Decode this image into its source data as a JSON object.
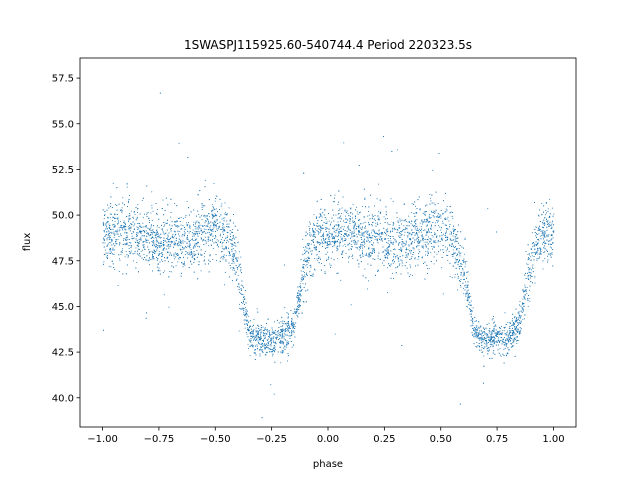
{
  "chart_data": {
    "type": "scatter",
    "title": "1SWASPJ115925.60-540744.4 Period 220323.5s",
    "xlabel": "phase",
    "ylabel": "flux",
    "xlim": [
      -1.1,
      1.1
    ],
    "ylim": [
      38.4,
      58.6
    ],
    "xticks": [
      -1.0,
      -0.75,
      -0.5,
      -0.25,
      0.0,
      0.25,
      0.5,
      0.75,
      1.0
    ],
    "xtick_labels": [
      "−1.00",
      "−0.75",
      "−0.50",
      "−0.25",
      "0.00",
      "0.25",
      "0.50",
      "0.75",
      "1.00"
    ],
    "yticks": [
      40.0,
      42.5,
      45.0,
      47.5,
      50.0,
      52.5,
      55.0,
      57.5
    ],
    "ytick_labels": [
      "40.0",
      "42.5",
      "45.0",
      "47.5",
      "50.0",
      "52.5",
      "55.0",
      "57.5"
    ],
    "grid": false,
    "marker_color": "#1f77b4",
    "series": [
      {
        "description_points": [
          [
            -1.0,
            49.0
          ],
          [
            -0.9,
            49.0
          ],
          [
            -0.8,
            48.8
          ],
          [
            -0.7,
            48.5
          ],
          [
            -0.6,
            48.8
          ],
          [
            -0.5,
            49.5
          ],
          [
            -0.45,
            48.8
          ],
          [
            -0.4,
            47.0
          ],
          [
            -0.35,
            43.5
          ],
          [
            -0.3,
            43.2
          ],
          [
            -0.25,
            43.2
          ],
          [
            -0.2,
            43.4
          ],
          [
            -0.15,
            44.0
          ],
          [
            -0.1,
            47.5
          ],
          [
            -0.05,
            49.0
          ],
          [
            0.0,
            49.0
          ],
          [
            0.1,
            49.0
          ],
          [
            0.2,
            48.8
          ],
          [
            0.3,
            48.5
          ],
          [
            0.4,
            48.8
          ],
          [
            0.5,
            49.5
          ],
          [
            0.55,
            48.8
          ],
          [
            0.6,
            47.0
          ],
          [
            0.65,
            43.5
          ],
          [
            0.7,
            43.2
          ],
          [
            0.75,
            43.2
          ],
          [
            0.8,
            43.4
          ],
          [
            0.85,
            44.0
          ],
          [
            0.9,
            47.5
          ],
          [
            0.95,
            49.0
          ],
          [
            1.0,
            49.0
          ]
        ]
      }
    ]
  }
}
